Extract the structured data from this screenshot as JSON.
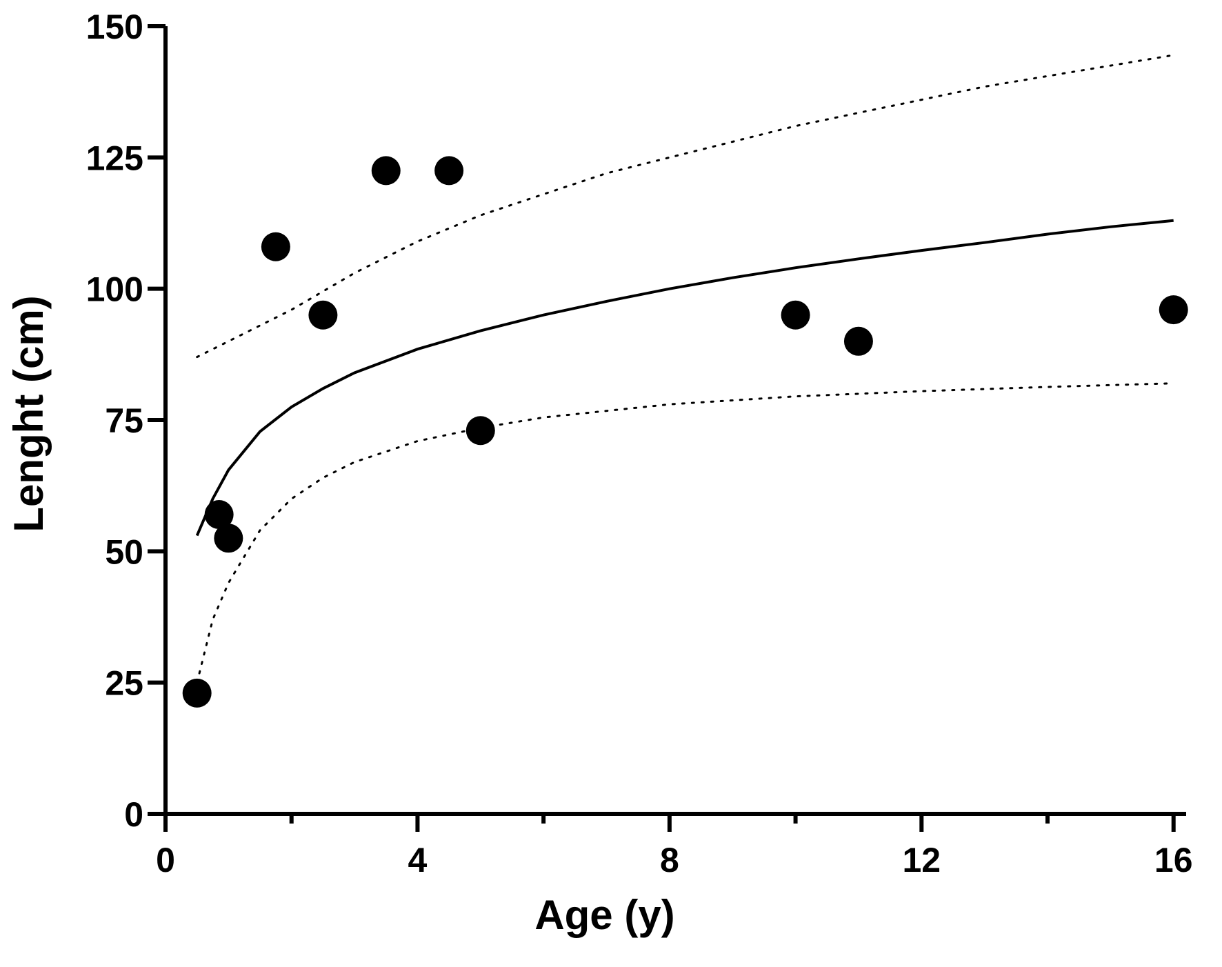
{
  "chart_data": {
    "type": "scatter",
    "title": "",
    "xlabel": "Age (y)",
    "ylabel": "Lenght (cm)",
    "xlim": [
      0,
      16.2
    ],
    "ylim": [
      0,
      150
    ],
    "x_ticks": [
      0,
      4,
      8,
      12,
      16
    ],
    "x_minor_ticks": [
      2,
      6,
      10,
      14
    ],
    "y_ticks": [
      0,
      25,
      50,
      75,
      100,
      125,
      150
    ],
    "grid": false,
    "legend": null,
    "colors": {
      "axis": "#000000",
      "points": "#000000",
      "fit": "#000000"
    },
    "points": {
      "name": "observed",
      "x": [
        0.5,
        0.85,
        1.0,
        1.75,
        2.5,
        3.5,
        4.5,
        5.0,
        10.0,
        11.0,
        16.0
      ],
      "y": [
        23,
        57,
        52.5,
        108,
        95,
        122.5,
        122.5,
        73,
        95,
        90,
        96
      ]
    },
    "curves": [
      {
        "name": "fit",
        "style": "solid",
        "x": [
          0.5,
          0.75,
          1,
          1.5,
          2,
          2.5,
          3,
          4,
          5,
          6,
          7,
          8,
          9,
          10,
          11,
          12,
          13,
          14,
          15,
          16
        ],
        "y": [
          53,
          60,
          65.5,
          72.8,
          77.5,
          81,
          84,
          88.5,
          92,
          95,
          97.6,
          100,
          102.1,
          104,
          105.7,
          107.3,
          108.8,
          110.4,
          111.8,
          113
        ]
      },
      {
        "name": "upper-band",
        "style": "dotted",
        "x": [
          0.5,
          1,
          2,
          3,
          4,
          5,
          6,
          7,
          8,
          9,
          10,
          11,
          12,
          13,
          14,
          15,
          16
        ],
        "y": [
          87,
          90,
          96,
          103,
          109,
          114,
          118,
          122,
          125,
          128,
          131,
          133.5,
          136,
          138.5,
          140.5,
          142.5,
          144.5
        ]
      },
      {
        "name": "lower-band",
        "style": "dotted",
        "x": [
          0.5,
          0.75,
          1,
          1.5,
          2,
          2.5,
          3,
          4,
          5,
          6,
          8,
          10,
          12,
          14,
          16
        ],
        "y": [
          25,
          37,
          44,
          54,
          60,
          64,
          67,
          71,
          73.5,
          75.5,
          78,
          79.5,
          80.5,
          81.3,
          82
        ]
      }
    ]
  }
}
